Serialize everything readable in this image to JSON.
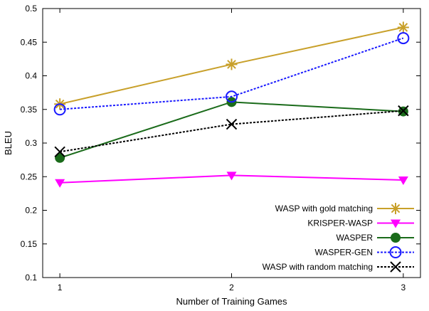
{
  "chart_data": {
    "type": "line",
    "title": "",
    "xlabel": "Number of Training Games",
    "ylabel": "BLEU",
    "x": [
      1,
      2,
      3
    ],
    "xlim": [
      0.9,
      3.1
    ],
    "ylim": [
      0.1,
      0.5
    ],
    "xticks": [
      "1",
      "2",
      "3"
    ],
    "yticks": [
      "0.1",
      "0.15",
      "0.2",
      "0.25",
      "0.3",
      "0.35",
      "0.4",
      "0.45",
      "0.5"
    ],
    "grid": false,
    "legend_position": "bottom-right",
    "series": [
      {
        "name": "WASP with gold matching",
        "values": [
          0.358,
          0.417,
          0.472
        ],
        "color": "#c8a02a",
        "marker": "asterisk",
        "dash": "solid"
      },
      {
        "name": "KRISPER-WASP",
        "values": [
          0.241,
          0.252,
          0.245
        ],
        "color": "#ff00ff",
        "marker": "triangle-down",
        "dash": "solid"
      },
      {
        "name": "WASPER",
        "values": [
          0.278,
          0.361,
          0.347
        ],
        "color": "#1a6b1a",
        "marker": "filled-circle",
        "dash": "solid"
      },
      {
        "name": "WASPER-GEN",
        "values": [
          0.35,
          0.369,
          0.456
        ],
        "color": "#1a1aff",
        "marker": "open-circle",
        "dash": "dotted"
      },
      {
        "name": "WASP with random matching",
        "values": [
          0.287,
          0.328,
          0.348
        ],
        "color": "#000000",
        "marker": "x-cross",
        "dash": "dotted"
      }
    ]
  }
}
